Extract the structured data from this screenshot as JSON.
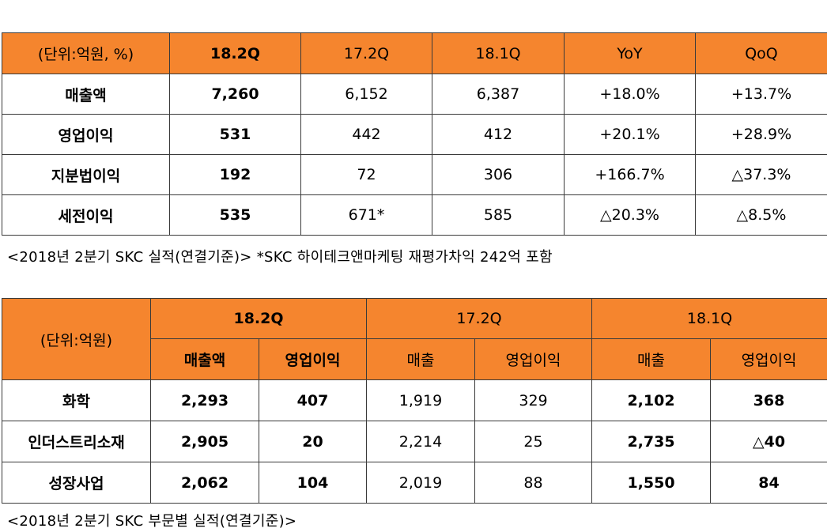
{
  "table1": {
    "headers": [
      "(단위:억원, %)",
      "18.2Q",
      "17.2Q",
      "18.1Q",
      "YoY",
      "QoQ"
    ],
    "rows": [
      [
        "매출액",
        "7,260",
        "6,152",
        "6,387",
        "+18.0%",
        "+13.7%"
      ],
      [
        "영업이익",
        "531",
        "442",
        "412",
        "+20.1%",
        "+28.9%"
      ],
      [
        "지분법이익",
        "192",
        "72",
        "306",
        "+166.7%",
        "△37.3%"
      ],
      [
        "세전이익",
        "535",
        "671*",
        "585",
        "△20.3%",
        "△8.5%"
      ]
    ],
    "caption": "<2018년 2분기 SKC 실적(연결기준)> *SKC 하이테크앤마케팅 재평가차익 242억 포함"
  },
  "table2": {
    "unit": "(단위:억원)",
    "periods": [
      "18.2Q",
      "17.2Q",
      "18.1Q"
    ],
    "subheaders": [
      "매출액",
      "영업이익",
      "매출",
      "영업이익",
      "매출",
      "영업이익"
    ],
    "rows": [
      [
        "화학",
        "2,293",
        "407",
        "1,919",
        "329",
        "2,102",
        "368"
      ],
      [
        "인더스트리소재",
        "2,905",
        "20",
        "2,214",
        "25",
        "2,735",
        "△40"
      ],
      [
        "성장사업",
        "2,062",
        "104",
        "2,019",
        "88",
        "1,550",
        "84"
      ]
    ],
    "caption": "<2018년 2분기 SKC 부문별 실적(연결기준)>"
  },
  "colors": {
    "header_orange": "#f5852e",
    "border": "#3a3a3a"
  }
}
